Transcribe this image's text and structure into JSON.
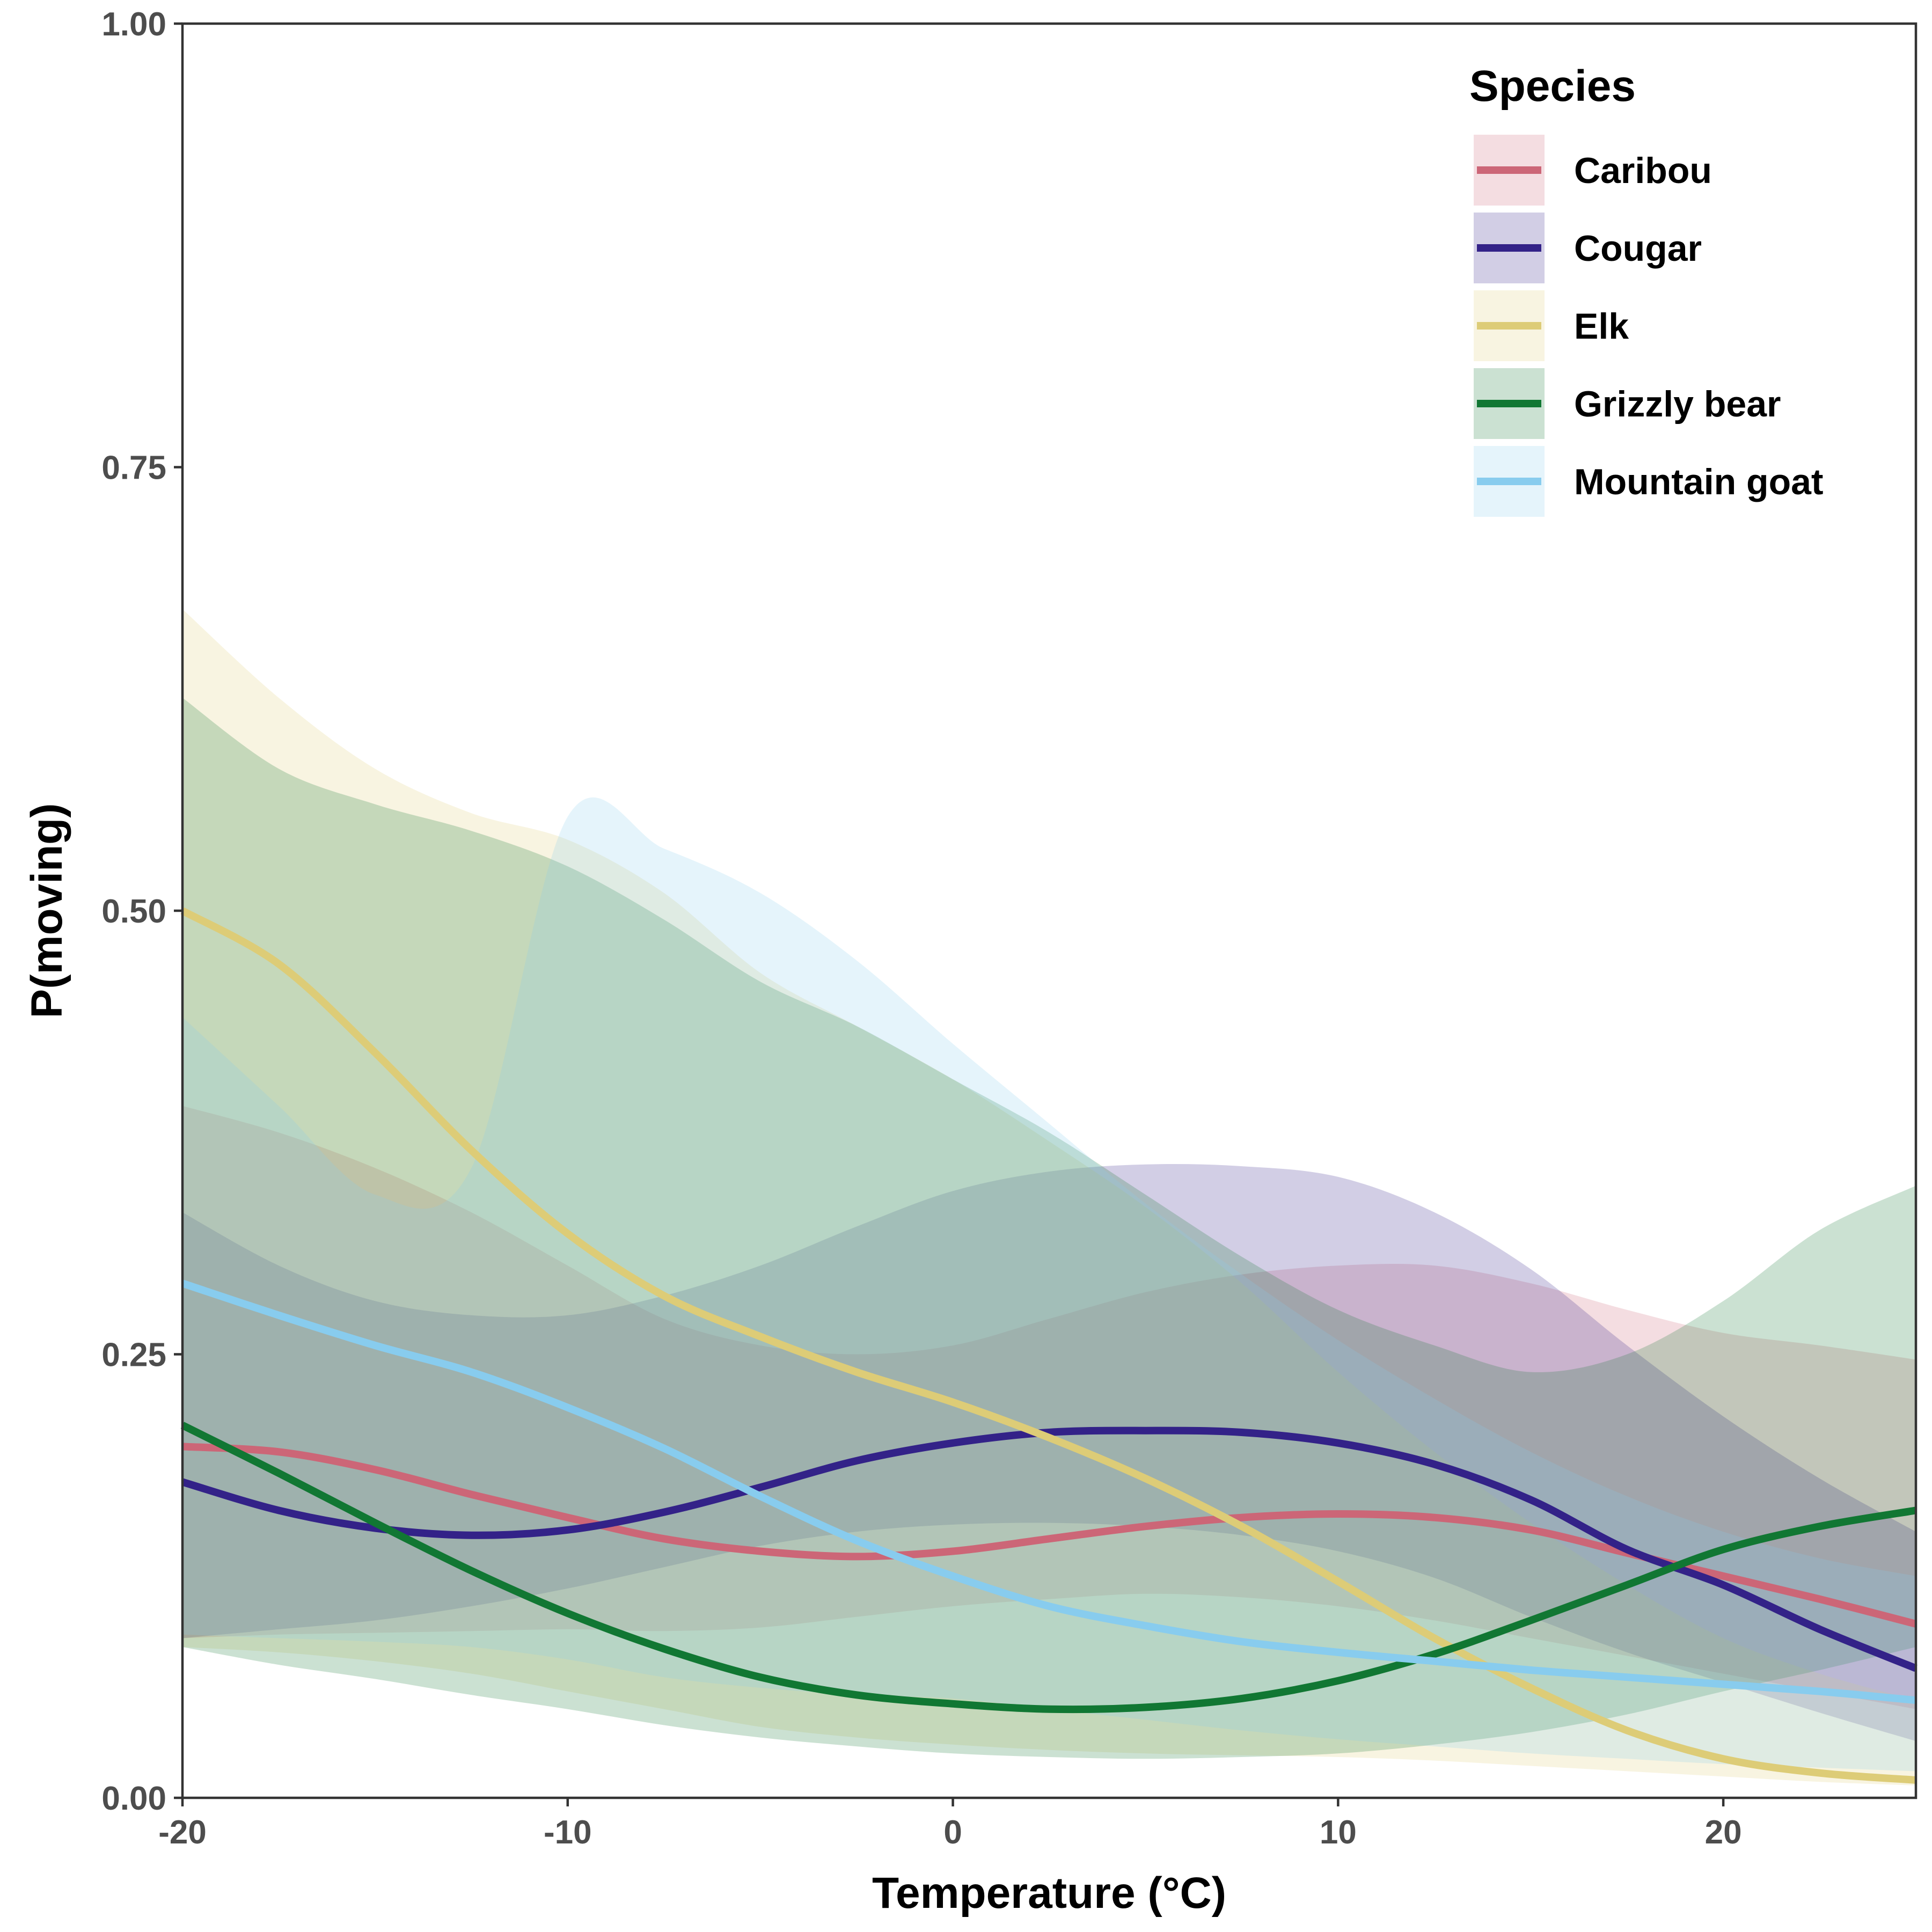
{
  "chart_data": {
    "type": "line",
    "xlabel": "Temperature (°C)",
    "ylabel": "P(moving)",
    "xlim": [
      -20,
      25
    ],
    "ylim": [
      0,
      1
    ],
    "x_ticks": [
      -20,
      -10,
      0,
      10,
      20
    ],
    "x_tick_labels": [
      "-20",
      "-10",
      "0",
      "10",
      "20"
    ],
    "y_ticks": [
      0,
      0.25,
      0.5,
      0.75,
      1
    ],
    "y_tick_labels": [
      "0.00",
      "0.25",
      "0.50",
      "0.75",
      "1.00"
    ],
    "grid": false,
    "legend": {
      "title": "Species",
      "position": "top-right"
    },
    "x": [
      -20,
      -17.5,
      -15,
      -12.5,
      -10,
      -7.5,
      -5,
      -2.5,
      0,
      2.5,
      5,
      7.5,
      10,
      12.5,
      15,
      17.5,
      20,
      22.5,
      25
    ],
    "series": [
      {
        "name": "Caribou",
        "color": "#cc6677",
        "values": [
          0.198,
          0.195,
          0.185,
          0.171,
          0.158,
          0.146,
          0.139,
          0.136,
          0.139,
          0.146,
          0.153,
          0.158,
          0.16,
          0.158,
          0.151,
          0.138,
          0.125,
          0.112,
          0.098
        ],
        "lower": [
          0.09,
          0.092,
          0.093,
          0.094,
          0.095,
          0.094,
          0.096,
          0.102,
          0.108,
          0.112,
          0.115,
          0.113,
          0.108,
          0.1,
          0.09,
          0.08,
          0.07,
          0.06,
          0.05
        ],
        "upper": [
          0.39,
          0.375,
          0.355,
          0.33,
          0.3,
          0.27,
          0.255,
          0.25,
          0.255,
          0.27,
          0.285,
          0.295,
          0.3,
          0.3,
          0.29,
          0.275,
          0.262,
          0.255,
          0.247
        ]
      },
      {
        "name": "Cougar",
        "color": "#332288",
        "values": [
          0.178,
          0.162,
          0.152,
          0.148,
          0.151,
          0.161,
          0.175,
          0.19,
          0.2,
          0.206,
          0.207,
          0.206,
          0.2,
          0.188,
          0.168,
          0.14,
          0.12,
          0.095,
          0.073
        ],
        "lower": [
          0.09,
          0.095,
          0.1,
          0.108,
          0.118,
          0.13,
          0.142,
          0.15,
          0.154,
          0.155,
          0.153,
          0.148,
          0.139,
          0.124,
          0.102,
          0.082,
          0.065,
          0.048,
          0.032
        ],
        "upper": [
          0.33,
          0.3,
          0.28,
          0.272,
          0.272,
          0.283,
          0.3,
          0.322,
          0.342,
          0.353,
          0.357,
          0.356,
          0.35,
          0.33,
          0.298,
          0.255,
          0.215,
          0.18,
          0.15
        ]
      },
      {
        "name": "Elk",
        "color": "#ddcc77",
        "values": [
          0.5,
          0.47,
          0.42,
          0.365,
          0.318,
          0.283,
          0.26,
          0.24,
          0.223,
          0.203,
          0.18,
          0.153,
          0.122,
          0.09,
          0.062,
          0.038,
          0.022,
          0.014,
          0.01
        ],
        "lower": [
          0.085,
          0.082,
          0.077,
          0.07,
          0.06,
          0.05,
          0.04,
          0.034,
          0.03,
          0.027,
          0.025,
          0.024,
          0.023,
          0.021,
          0.018,
          0.015,
          0.012,
          0.009,
          0.007
        ],
        "upper": [
          0.67,
          0.62,
          0.58,
          0.555,
          0.54,
          0.51,
          0.465,
          0.435,
          0.405,
          0.37,
          0.333,
          0.29,
          0.24,
          0.195,
          0.155,
          0.12,
          0.09,
          0.07,
          0.055
        ]
      },
      {
        "name": "Grizzly bear",
        "color": "#117733",
        "values": [
          0.21,
          0.183,
          0.155,
          0.128,
          0.104,
          0.084,
          0.068,
          0.058,
          0.053,
          0.05,
          0.051,
          0.056,
          0.066,
          0.081,
          0.1,
          0.12,
          0.14,
          0.153,
          0.162
        ],
        "lower": [
          0.085,
          0.075,
          0.067,
          0.058,
          0.05,
          0.041,
          0.034,
          0.029,
          0.025,
          0.023,
          0.022,
          0.023,
          0.025,
          0.03,
          0.037,
          0.047,
          0.06,
          0.072,
          0.085
        ],
        "upper": [
          0.62,
          0.58,
          0.56,
          0.545,
          0.525,
          0.495,
          0.46,
          0.435,
          0.405,
          0.375,
          0.34,
          0.305,
          0.275,
          0.255,
          0.24,
          0.25,
          0.28,
          0.32,
          0.345
        ]
      },
      {
        "name": "Mountain goat",
        "color": "#88ccee",
        "values": [
          0.29,
          0.272,
          0.255,
          0.24,
          0.22,
          0.197,
          0.17,
          0.145,
          0.125,
          0.108,
          0.097,
          0.088,
          0.082,
          0.077,
          0.072,
          0.068,
          0.064,
          0.06,
          0.055
        ],
        "lower": [
          0.092,
          0.09,
          0.088,
          0.085,
          0.078,
          0.068,
          0.062,
          0.058,
          0.056,
          0.05,
          0.044,
          0.038,
          0.033,
          0.029,
          0.025,
          0.022,
          0.019,
          0.017,
          0.015
        ],
        "upper": [
          0.44,
          0.39,
          0.34,
          0.355,
          0.553,
          0.535,
          0.51,
          0.472,
          0.425,
          0.38,
          0.335,
          0.295,
          0.258,
          0.225,
          0.195,
          0.17,
          0.15,
          0.135,
          0.125
        ]
      }
    ]
  }
}
